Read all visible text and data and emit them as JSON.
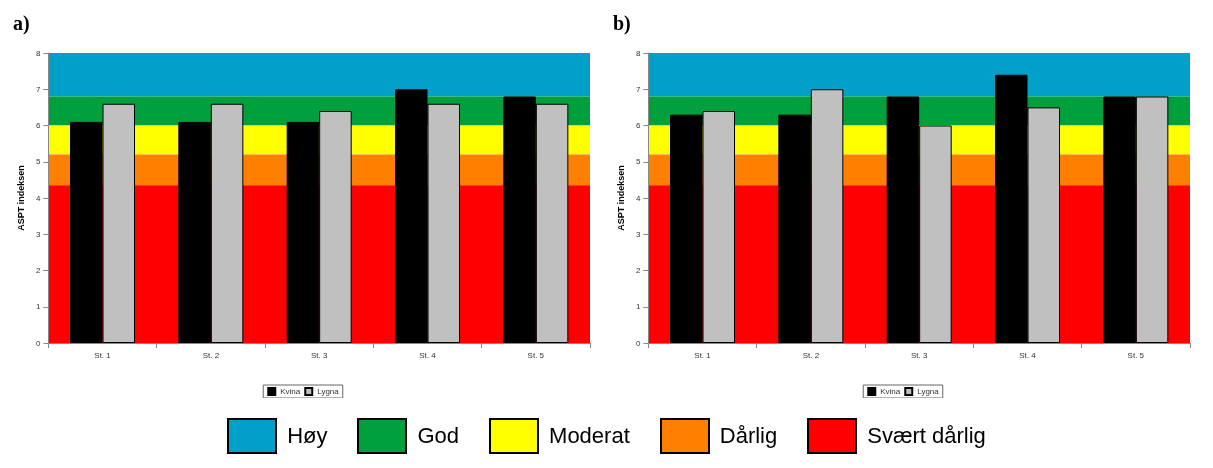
{
  "chart_data": [
    {
      "type": "bar",
      "title": "a)",
      "ylabel": "ASPT indeksen",
      "categories": [
        "St. 1",
        "St. 2",
        "St. 3",
        "St. 4",
        "St. 5"
      ],
      "series": [
        {
          "name": "Kvina",
          "color": "#000000",
          "values": [
            6.1,
            6.1,
            6.1,
            7.0,
            6.8
          ]
        },
        {
          "name": "Lygna",
          "color": "#c0c0c0",
          "values": [
            6.6,
            6.6,
            6.4,
            6.6,
            6.6
          ]
        }
      ],
      "ylim": [
        0,
        8
      ],
      "yticks": [
        0,
        1,
        2,
        3,
        4,
        5,
        6,
        7,
        8
      ],
      "grid": false,
      "legend": "bottom",
      "bands": [
        {
          "axis": "y",
          "from": 6.8,
          "to": 8,
          "label": "Høy",
          "color": "#00a0c8"
        },
        {
          "axis": "y",
          "from": 6,
          "to": 6.8,
          "label": "God",
          "color": "#00a03c"
        },
        {
          "axis": "y",
          "from": 5.2,
          "to": 6,
          "label": "Moderat",
          "color": "#ffff00"
        },
        {
          "axis": "y",
          "from": 4.35,
          "to": 5.2,
          "label": "Dårlig",
          "color": "#ff8000"
        },
        {
          "axis": "y",
          "from": 0,
          "to": 4.35,
          "label": "Svært dårlig",
          "color": "#ff0000"
        }
      ]
    },
    {
      "type": "bar",
      "title": "b)",
      "ylabel": "ASPT indeksen",
      "categories": [
        "St. 1",
        "St. 2",
        "St. 3",
        "St. 4",
        "St. 5"
      ],
      "series": [
        {
          "name": "Kvina",
          "color": "#000000",
          "values": [
            6.3,
            6.3,
            6.8,
            7.4,
            6.8
          ]
        },
        {
          "name": "Lygna",
          "color": "#c0c0c0",
          "values": [
            6.4,
            7.0,
            6.0,
            6.5,
            6.8
          ]
        }
      ],
      "ylim": [
        0,
        8
      ],
      "yticks": [
        0,
        1,
        2,
        3,
        4,
        5,
        6,
        7,
        8
      ],
      "grid": false,
      "legend": "bottom",
      "bands": [
        {
          "axis": "y",
          "from": 6.8,
          "to": 8,
          "color": "#00a0c8"
        },
        {
          "axis": "y",
          "from": 6,
          "to": 6.8,
          "color": "#00a03c"
        },
        {
          "axis": "y",
          "from": 5.2,
          "to": 6,
          "color": "#ffff00"
        },
        {
          "axis": "y",
          "from": 4.35,
          "to": 5.2,
          "color": "#ff8000"
        },
        {
          "axis": "y",
          "from": 0,
          "to": 4.35,
          "color": "#ff0000"
        }
      ]
    }
  ]
}
